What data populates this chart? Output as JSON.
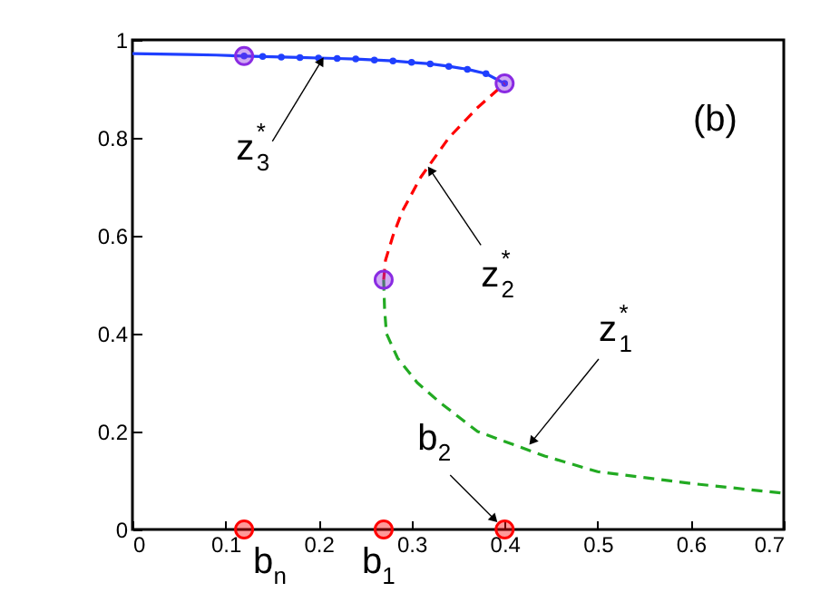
{
  "chart_data": {
    "type": "line",
    "xlim": [
      0,
      0.7
    ],
    "xticks": [
      0,
      0.1,
      0.2,
      0.3,
      0.4,
      0.5,
      0.6,
      0.7
    ],
    "ylim": [
      0,
      1
    ],
    "yticks": [
      0,
      0.2,
      0.4,
      0.6,
      0.8,
      1
    ],
    "grid": false,
    "series": [
      {
        "color": "#1f3fff",
        "line_style": "solid",
        "x": [
          0,
          0.03,
          0.06,
          0.09,
          0.12
        ],
        "values": [
          0.972,
          0.971,
          0.97,
          0.969,
          0.967
        ]
      },
      {
        "color": "#1f3fff",
        "line_style": "solid",
        "marker": "circle",
        "x": [
          0.12,
          0.14,
          0.16,
          0.18,
          0.2,
          0.22,
          0.24,
          0.26,
          0.28,
          0.3,
          0.32,
          0.34,
          0.36,
          0.38,
          0.4
        ],
        "values": [
          0.967,
          0.966,
          0.965,
          0.964,
          0.963,
          0.962,
          0.961,
          0.959,
          0.957,
          0.954,
          0.951,
          0.946,
          0.94,
          0.931,
          0.911
        ]
      },
      {
        "color": "#ff0000",
        "line_style": "dashed",
        "x": [
          0.4,
          0.37,
          0.34,
          0.31,
          0.29,
          0.28,
          0.272,
          0.27
        ],
        "values": [
          0.911,
          0.86,
          0.8,
          0.72,
          0.65,
          0.6,
          0.55,
          0.51
        ]
      },
      {
        "color": "#22aa22",
        "line_style": "dashed",
        "x": [
          0.27,
          0.271,
          0.273,
          0.285,
          0.306,
          0.33,
          0.371,
          0.443,
          0.5,
          0.6,
          0.7
        ],
        "values": [
          0.51,
          0.45,
          0.4,
          0.35,
          0.3,
          0.26,
          0.2,
          0.15,
          0.118,
          0.094,
          0.074
        ]
      },
      {
        "type": "scatter",
        "color": "#8a2be2",
        "marker": "circle",
        "x": [
          0.12,
          0.4,
          0.27
        ],
        "values": [
          0.967,
          0.911,
          0.51
        ]
      },
      {
        "type": "scatter",
        "color": "#ff0000",
        "marker": "circle",
        "x": [
          0.12,
          0.27,
          0.4
        ],
        "values": [
          0,
          0,
          0
        ]
      }
    ],
    "annotations": [
      {
        "text": "z$_{3}$$^{*}$",
        "x": 0.205,
        "y": 0.963
      },
      {
        "text": "z$_{2}$$^{*}$",
        "x": 0.318,
        "y": 0.74
      },
      {
        "text": "z$_{1}$$^{*}$",
        "x": 0.427,
        "y": 0.174
      },
      {
        "text": "b$_{2}$",
        "x": 0.4,
        "y": 0
      },
      {
        "text": "b$_{n}$",
        "x": 0.12,
        "y": 0
      },
      {
        "text": "b$_{1}$",
        "x": 0.27,
        "y": 0
      },
      "(b)"
    ]
  }
}
